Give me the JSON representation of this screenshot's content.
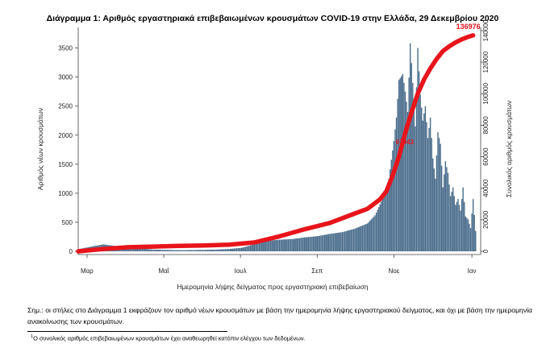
{
  "chart_data": {
    "type": "bar+line",
    "title": "Διάγραμμα 1: Αριθμός εργαστηριακά επιβεβαιωμένων κρουσμάτων COVID-19 στην Ελλάδα, 29 Δεκεμβρίου 2020",
    "xlabel": "Ημερομηνία λήψης δείγματος προς εργαστηριακή επιβεβαίωση",
    "ylabel_left": "Αριθμός νέων κρουσμάτων",
    "ylabel_right": "Συνολικός αριθμός κρουσμάτων",
    "ylim_left": [
      0,
      3800
    ],
    "ylim_right": [
      0,
      140000
    ],
    "yticks_left": [
      "0",
      "500",
      "1000",
      "1500",
      "2000",
      "2500",
      "3000",
      "3500"
    ],
    "yticks_right": [
      "0",
      "20000",
      "40000",
      "60000",
      "80000",
      "100000",
      "120000",
      "140000"
    ],
    "xticks": [
      "Μαρ",
      "Μαΐ",
      "Ιουλ",
      "Σεπ",
      "Νοε",
      "Ιαν"
    ],
    "xtick_days": [
      7,
      68,
      129,
      190,
      251,
      313
    ],
    "day_range": [
      0,
      320
    ],
    "series": [
      {
        "name": "Νέα κρούσματα",
        "type": "bar",
        "color": "#4a6d8c",
        "points": [
          [
            0,
            35
          ],
          [
            10,
            80
          ],
          [
            20,
            120
          ],
          [
            30,
            90
          ],
          [
            40,
            65
          ],
          [
            50,
            45
          ],
          [
            60,
            30
          ],
          [
            70,
            25
          ],
          [
            80,
            20
          ],
          [
            90,
            22
          ],
          [
            100,
            25
          ],
          [
            110,
            30
          ],
          [
            120,
            40
          ],
          [
            130,
            60
          ],
          [
            140,
            120
          ],
          [
            150,
            180
          ],
          [
            160,
            200
          ],
          [
            170,
            210
          ],
          [
            180,
            240
          ],
          [
            190,
            260
          ],
          [
            200,
            300
          ],
          [
            210,
            330
          ],
          [
            220,
            390
          ],
          [
            230,
            480
          ],
          [
            236,
            620
          ],
          [
            242,
            900
          ],
          [
            247,
            1250
          ],
          [
            251,
            1900
          ],
          [
            253,
            2300
          ],
          [
            255,
            2950
          ],
          [
            258,
            3050
          ],
          [
            260,
            2750
          ],
          [
            262,
            2400
          ],
          [
            264,
            3580
          ],
          [
            266,
            2900
          ],
          [
            268,
            2150
          ],
          [
            270,
            3500
          ],
          [
            272,
            2700
          ],
          [
            274,
            2250
          ],
          [
            276,
            2500
          ],
          [
            278,
            1950
          ],
          [
            280,
            2300
          ],
          [
            282,
            1600
          ],
          [
            284,
            1250
          ],
          [
            286,
            2050
          ],
          [
            288,
            1850
          ],
          [
            290,
            1100
          ],
          [
            292,
            1550
          ],
          [
            294,
            1350
          ],
          [
            296,
            950
          ],
          [
            298,
            1100
          ],
          [
            300,
            800
          ],
          [
            302,
            900
          ],
          [
            304,
            700
          ],
          [
            306,
            1100
          ],
          [
            308,
            600
          ],
          [
            310,
            550
          ],
          [
            312,
            400
          ],
          [
            314,
            900
          ],
          [
            316,
            350
          ]
        ]
      },
      {
        "name": "Συνολικός αριθμός κρουσμάτων",
        "type": "line",
        "color": "#e8141b",
        "points": [
          [
            0,
            0
          ],
          [
            20,
            1500
          ],
          [
            40,
            2600
          ],
          [
            60,
            3000
          ],
          [
            80,
            3400
          ],
          [
            100,
            3700
          ],
          [
            120,
            4200
          ],
          [
            140,
            5600
          ],
          [
            160,
            9500
          ],
          [
            180,
            14000
          ],
          [
            200,
            18000
          ],
          [
            220,
            24000
          ],
          [
            230,
            27000
          ],
          [
            240,
            33000
          ],
          [
            245,
            38000
          ],
          [
            250,
            48000
          ],
          [
            255,
            60000
          ],
          [
            260,
            75000
          ],
          [
            265,
            88000
          ],
          [
            270,
            100000
          ],
          [
            275,
            109000
          ],
          [
            280,
            116000
          ],
          [
            285,
            122000
          ],
          [
            290,
            127000
          ],
          [
            295,
            130000
          ],
          [
            300,
            132500
          ],
          [
            305,
            134500
          ],
          [
            310,
            136000
          ],
          [
            314,
            136976
          ]
        ]
      }
    ],
    "annotations": [
      {
        "text": "136976",
        "series": "Συνολικός αριθμός κρουσμάτων",
        "at_day": 314,
        "at_value": 136976,
        "color": "#e8141b"
      },
      {
        "text": "67043",
        "series": "Συνολικός αριθμός κρουσμάτων",
        "at_day": 259,
        "at_value": 67000,
        "color": "#e8141b"
      }
    ],
    "legend": "none"
  },
  "notes": {
    "note": "Σημ.: οι στήλες στο Διάγραμμα 1 εκφράζουν τον αριθμό νέων κρουσμάτων με βάση την ημερομηνία λήψης εργαστηριακού δείγματος, και όχι με βάση την ημερομηνία ανακοίνωσης των κρουσμάτων.",
    "footnote_mark": "1",
    "footnote": "Ο συνολικός αριθμός επιβεβαιωμένων κρουσμάτων έχει αναθεωρηθεί κατόπιν ελέγχου των δεδομένων."
  }
}
